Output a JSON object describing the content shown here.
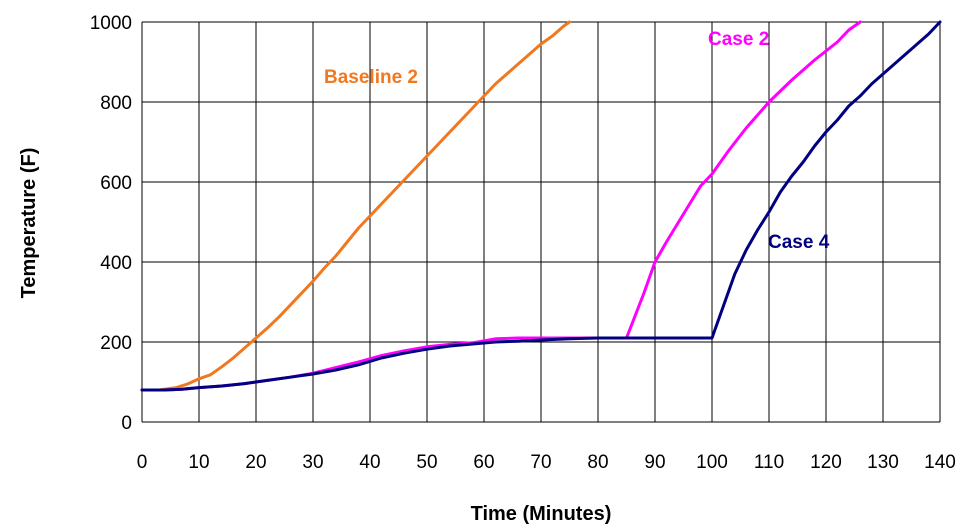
{
  "chart_data": {
    "type": "line",
    "title": "",
    "xlabel": "Time (Minutes)",
    "ylabel": "Temperature (F)",
    "xlim": [
      0,
      140
    ],
    "ylim": [
      0,
      1000
    ],
    "x_ticks": [
      0,
      10,
      20,
      30,
      40,
      50,
      60,
      70,
      80,
      90,
      100,
      110,
      120,
      130,
      140
    ],
    "y_ticks": [
      0,
      200,
      400,
      600,
      800,
      1000
    ],
    "grid": true,
    "legend": "inline labels",
    "series": [
      {
        "name": "Baseline  2",
        "color": "#f07820",
        "x": [
          0,
          3,
          6,
          8,
          10,
          12,
          14,
          16,
          18,
          20,
          22,
          24,
          26,
          28,
          30,
          32,
          34,
          36,
          38,
          40,
          42,
          44,
          46,
          48,
          50,
          52,
          54,
          56,
          58,
          60,
          62,
          64,
          66,
          68,
          70,
          72,
          74,
          75
        ],
        "y": [
          80,
          80,
          86,
          95,
          108,
          118,
          138,
          160,
          185,
          210,
          235,
          262,
          292,
          322,
          352,
          385,
          415,
          450,
          485,
          515,
          545,
          575,
          605,
          635,
          665,
          695,
          725,
          755,
          785,
          815,
          845,
          870,
          895,
          920,
          945,
          965,
          990,
          1000
        ]
      },
      {
        "name": "Case 2",
        "color": "#ff00ff",
        "x": [
          0,
          4,
          7,
          10,
          14,
          18,
          22,
          26,
          30,
          34,
          38,
          42,
          46,
          50,
          54,
          58,
          62,
          66,
          70,
          75,
          80,
          85,
          88,
          90,
          92,
          95,
          98,
          100,
          103,
          106,
          110,
          114,
          118,
          122,
          124,
          126
        ],
        "y": [
          80,
          80,
          82,
          86,
          90,
          96,
          104,
          112,
          122,
          136,
          150,
          166,
          178,
          188,
          194,
          198,
          208,
          210,
          210,
          210,
          210,
          210,
          320,
          400,
          450,
          520,
          590,
          620,
          680,
          735,
          800,
          855,
          905,
          950,
          980,
          1000
        ]
      },
      {
        "name": "Case 4",
        "color": "#000080",
        "x": [
          0,
          4,
          7,
          10,
          14,
          18,
          22,
          26,
          30,
          34,
          38,
          42,
          46,
          50,
          54,
          58,
          62,
          66,
          70,
          75,
          80,
          85,
          90,
          95,
          100,
          102,
          104,
          106,
          108,
          110,
          112,
          114,
          116,
          118,
          120,
          122,
          124,
          126,
          128,
          130,
          132,
          134,
          136,
          138,
          140
        ],
        "y": [
          80,
          80,
          82,
          86,
          90,
          96,
          104,
          112,
          120,
          130,
          143,
          160,
          172,
          182,
          190,
          195,
          200,
          202,
          205,
          208,
          210,
          210,
          210,
          210,
          210,
          290,
          370,
          430,
          480,
          525,
          575,
          615,
          650,
          690,
          725,
          755,
          790,
          815,
          845,
          870,
          895,
          920,
          945,
          970,
          1000
        ]
      }
    ],
    "annotations": [
      {
        "text": "Baseline  2",
        "series": 0
      },
      {
        "text": "Case 2",
        "series": 1
      },
      {
        "text": "Case 4",
        "series": 2
      }
    ]
  }
}
